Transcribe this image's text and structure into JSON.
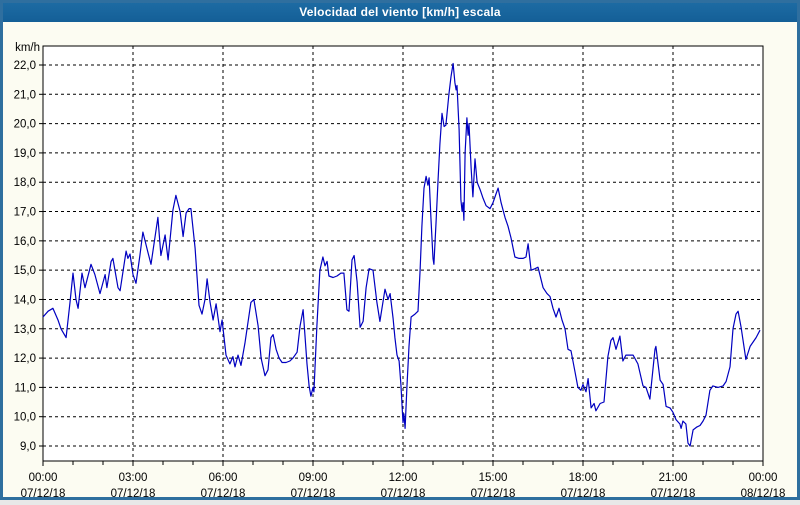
{
  "window": {
    "title": "Velocidad del viento [km/h] escala"
  },
  "colors": {
    "titlebar_blue": "#17629b",
    "window_border_blue": "#2f6f9f",
    "content_background": "#fcfcf2",
    "plot_background": "#ffffff",
    "series_line": "#0000c0",
    "grid_and_axis": "#000000"
  },
  "chart_data": {
    "type": "line",
    "title": "Velocidad del viento [km/h] escala",
    "ylabel": "km/h",
    "xlabel": "",
    "grid": "dashed horizontal every 1 km/h, dashed vertical every 3 h",
    "legend": "none",
    "ylim": [
      8.5,
      22.65
    ],
    "xlim_hours": [
      0,
      24
    ],
    "ytick_values": [
      22,
      21,
      20,
      19,
      18,
      17,
      16,
      15,
      14,
      13,
      12,
      11,
      10,
      9
    ],
    "ytick_labels": [
      "22,0",
      "21,0",
      "20,0",
      "19,0",
      "18,0",
      "17,0",
      "16,0",
      "15,0",
      "14,0",
      "13,0",
      "12,0",
      "11,0",
      "10,0",
      "9,0"
    ],
    "xticks": [
      {
        "hour": 0,
        "time": "00:00",
        "date": "07/12/18"
      },
      {
        "hour": 3,
        "time": "03:00",
        "date": "07/12/18"
      },
      {
        "hour": 6,
        "time": "06:00",
        "date": "07/12/18"
      },
      {
        "hour": 9,
        "time": "09:00",
        "date": "07/12/18"
      },
      {
        "hour": 12,
        "time": "12:00",
        "date": "07/12/18"
      },
      {
        "hour": 15,
        "time": "15:00",
        "date": "07/12/18"
      },
      {
        "hour": 18,
        "time": "18:00",
        "date": "07/12/18"
      },
      {
        "hour": 21,
        "time": "21:00",
        "date": "07/12/18"
      },
      {
        "hour": 24,
        "time": "00:00",
        "date": "08/12/18"
      }
    ],
    "series": [
      {
        "name": "Velocidad del viento [km/h]",
        "points": [
          [
            0,
            13.4
          ],
          [
            0.17,
            13.6
          ],
          [
            0.33,
            13.7
          ],
          [
            0.5,
            13.3
          ],
          [
            0.6,
            13.0
          ],
          [
            0.77,
            12.7
          ],
          [
            0.9,
            13.9
          ],
          [
            1.0,
            14.9
          ],
          [
            1.1,
            14.0
          ],
          [
            1.17,
            13.7
          ],
          [
            1.3,
            14.9
          ],
          [
            1.4,
            14.4
          ],
          [
            1.6,
            15.2
          ],
          [
            1.73,
            14.85
          ],
          [
            1.9,
            14.2
          ],
          [
            2.07,
            14.85
          ],
          [
            2.13,
            14.4
          ],
          [
            2.27,
            15.3
          ],
          [
            2.33,
            15.4
          ],
          [
            2.5,
            14.4
          ],
          [
            2.57,
            14.3
          ],
          [
            2.77,
            15.65
          ],
          [
            2.83,
            15.4
          ],
          [
            2.9,
            15.55
          ],
          [
            3.0,
            14.85
          ],
          [
            3.1,
            14.55
          ],
          [
            3.23,
            15.5
          ],
          [
            3.33,
            16.3
          ],
          [
            3.5,
            15.6
          ],
          [
            3.6,
            15.2
          ],
          [
            3.83,
            16.8
          ],
          [
            3.93,
            15.5
          ],
          [
            4.07,
            16.2
          ],
          [
            4.17,
            15.35
          ],
          [
            4.33,
            17.05
          ],
          [
            4.43,
            17.55
          ],
          [
            4.57,
            17.0
          ],
          [
            4.67,
            16.15
          ],
          [
            4.77,
            16.95
          ],
          [
            4.87,
            17.1
          ],
          [
            4.93,
            17.1
          ],
          [
            5.07,
            15.75
          ],
          [
            5.2,
            13.8
          ],
          [
            5.3,
            13.5
          ],
          [
            5.4,
            14.0
          ],
          [
            5.47,
            14.7
          ],
          [
            5.57,
            13.9
          ],
          [
            5.67,
            13.3
          ],
          [
            5.77,
            13.85
          ],
          [
            5.9,
            12.9
          ],
          [
            5.97,
            13.3
          ],
          [
            6.1,
            12.1
          ],
          [
            6.23,
            11.8
          ],
          [
            6.33,
            12.05
          ],
          [
            6.4,
            11.7
          ],
          [
            6.5,
            12.1
          ],
          [
            6.6,
            11.75
          ],
          [
            6.73,
            12.5
          ],
          [
            6.83,
            13.2
          ],
          [
            6.93,
            13.9
          ],
          [
            7.03,
            14.0
          ],
          [
            7.17,
            13.1
          ],
          [
            7.27,
            12.0
          ],
          [
            7.4,
            11.4
          ],
          [
            7.5,
            11.6
          ],
          [
            7.6,
            12.7
          ],
          [
            7.67,
            12.8
          ],
          [
            7.77,
            12.3
          ],
          [
            7.87,
            12.0
          ],
          [
            7.97,
            11.85
          ],
          [
            8.1,
            11.85
          ],
          [
            8.23,
            11.9
          ],
          [
            8.33,
            12.0
          ],
          [
            8.47,
            12.2
          ],
          [
            8.57,
            13.1
          ],
          [
            8.67,
            13.65
          ],
          [
            8.73,
            12.8
          ],
          [
            8.8,
            11.8
          ],
          [
            8.87,
            11.05
          ],
          [
            8.93,
            10.7
          ],
          [
            9.0,
            11.0
          ],
          [
            9.03,
            10.85
          ],
          [
            9.13,
            13.1
          ],
          [
            9.23,
            15.0
          ],
          [
            9.33,
            15.45
          ],
          [
            9.4,
            15.15
          ],
          [
            9.47,
            15.3
          ],
          [
            9.53,
            14.8
          ],
          [
            9.67,
            14.75
          ],
          [
            9.8,
            14.8
          ],
          [
            9.93,
            14.9
          ],
          [
            10.03,
            14.9
          ],
          [
            10.13,
            13.65
          ],
          [
            10.2,
            13.6
          ],
          [
            10.3,
            15.35
          ],
          [
            10.37,
            15.5
          ],
          [
            10.47,
            14.6
          ],
          [
            10.57,
            13.05
          ],
          [
            10.67,
            13.25
          ],
          [
            10.77,
            14.4
          ],
          [
            10.87,
            15.05
          ],
          [
            11.0,
            15.0
          ],
          [
            11.13,
            13.9
          ],
          [
            11.23,
            13.25
          ],
          [
            11.4,
            14.35
          ],
          [
            11.5,
            14.0
          ],
          [
            11.57,
            14.2
          ],
          [
            11.67,
            13.35
          ],
          [
            11.73,
            12.7
          ],
          [
            11.8,
            12.1
          ],
          [
            11.87,
            11.9
          ],
          [
            11.93,
            11.1
          ],
          [
            12.0,
            9.8
          ],
          [
            12.03,
            10.1
          ],
          [
            12.07,
            9.6
          ],
          [
            12.13,
            11.0
          ],
          [
            12.2,
            12.4
          ],
          [
            12.27,
            13.4
          ],
          [
            12.4,
            13.5
          ],
          [
            12.5,
            13.6
          ],
          [
            12.57,
            15.0
          ],
          [
            12.63,
            16.5
          ],
          [
            12.7,
            17.8
          ],
          [
            12.77,
            18.2
          ],
          [
            12.83,
            17.9
          ],
          [
            12.87,
            18.15
          ],
          [
            12.93,
            16.8
          ],
          [
            13.0,
            15.4
          ],
          [
            13.03,
            15.2
          ],
          [
            13.1,
            16.6
          ],
          [
            13.17,
            18.1
          ],
          [
            13.23,
            19.3
          ],
          [
            13.3,
            20.35
          ],
          [
            13.37,
            19.9
          ],
          [
            13.43,
            19.95
          ],
          [
            13.53,
            21.0
          ],
          [
            13.6,
            21.6
          ],
          [
            13.67,
            22.05
          ],
          [
            13.73,
            21.4
          ],
          [
            13.77,
            21.15
          ],
          [
            13.8,
            21.3
          ],
          [
            13.87,
            19.8
          ],
          [
            13.93,
            17.4
          ],
          [
            13.97,
            17.0
          ],
          [
            14.0,
            17.3
          ],
          [
            14.03,
            16.7
          ],
          [
            14.07,
            19.0
          ],
          [
            14.13,
            20.2
          ],
          [
            14.17,
            19.6
          ],
          [
            14.2,
            20.0
          ],
          [
            14.27,
            18.5
          ],
          [
            14.33,
            17.5
          ],
          [
            14.4,
            18.8
          ],
          [
            14.47,
            18.0
          ],
          [
            14.57,
            17.75
          ],
          [
            14.67,
            17.45
          ],
          [
            14.77,
            17.2
          ],
          [
            14.9,
            17.1
          ],
          [
            15.0,
            17.3
          ],
          [
            15.1,
            17.6
          ],
          [
            15.17,
            17.8
          ],
          [
            15.27,
            17.3
          ],
          [
            15.4,
            16.8
          ],
          [
            15.5,
            16.5
          ],
          [
            15.6,
            16.1
          ],
          [
            15.73,
            15.45
          ],
          [
            15.87,
            15.4
          ],
          [
            16.0,
            15.4
          ],
          [
            16.1,
            15.45
          ],
          [
            16.17,
            15.9
          ],
          [
            16.27,
            15.0
          ],
          [
            16.4,
            15.05
          ],
          [
            16.5,
            15.1
          ],
          [
            16.67,
            14.4
          ],
          [
            16.8,
            14.2
          ],
          [
            16.9,
            14.1
          ],
          [
            17.0,
            13.7
          ],
          [
            17.1,
            13.4
          ],
          [
            17.2,
            13.7
          ],
          [
            17.3,
            13.3
          ],
          [
            17.4,
            13.0
          ],
          [
            17.5,
            12.3
          ],
          [
            17.6,
            12.25
          ],
          [
            17.73,
            11.55
          ],
          [
            17.83,
            11.0
          ],
          [
            17.93,
            10.9
          ],
          [
            18.0,
            11.1
          ],
          [
            18.1,
            10.85
          ],
          [
            18.17,
            11.3
          ],
          [
            18.27,
            10.3
          ],
          [
            18.37,
            10.45
          ],
          [
            18.43,
            10.2
          ],
          [
            18.57,
            10.45
          ],
          [
            18.7,
            10.5
          ],
          [
            18.83,
            12.05
          ],
          [
            18.93,
            12.6
          ],
          [
            19.0,
            12.7
          ],
          [
            19.1,
            12.3
          ],
          [
            19.23,
            12.75
          ],
          [
            19.33,
            11.9
          ],
          [
            19.43,
            12.1
          ],
          [
            19.67,
            12.1
          ],
          [
            19.83,
            11.8
          ],
          [
            20.0,
            11.05
          ],
          [
            20.1,
            11.0
          ],
          [
            20.23,
            10.6
          ],
          [
            20.4,
            12.3
          ],
          [
            20.43,
            12.4
          ],
          [
            20.57,
            11.25
          ],
          [
            20.67,
            11.1
          ],
          [
            20.77,
            10.35
          ],
          [
            20.9,
            10.3
          ],
          [
            21.0,
            10.15
          ],
          [
            21.1,
            9.9
          ],
          [
            21.23,
            9.75
          ],
          [
            21.27,
            9.6
          ],
          [
            21.33,
            9.85
          ],
          [
            21.43,
            9.75
          ],
          [
            21.5,
            9.1
          ],
          [
            21.57,
            9.0
          ],
          [
            21.67,
            9.55
          ],
          [
            21.8,
            9.65
          ],
          [
            21.9,
            9.7
          ],
          [
            22.0,
            9.85
          ],
          [
            22.1,
            10.05
          ],
          [
            22.23,
            10.9
          ],
          [
            22.33,
            11.05
          ],
          [
            22.5,
            11.0
          ],
          [
            22.67,
            11.05
          ],
          [
            22.77,
            11.2
          ],
          [
            22.9,
            11.7
          ],
          [
            23.0,
            13.0
          ],
          [
            23.1,
            13.5
          ],
          [
            23.17,
            13.6
          ],
          [
            23.27,
            13.05
          ],
          [
            23.43,
            11.95
          ],
          [
            23.57,
            12.4
          ],
          [
            23.67,
            12.55
          ],
          [
            23.77,
            12.7
          ],
          [
            23.9,
            12.95
          ]
        ]
      }
    ]
  }
}
